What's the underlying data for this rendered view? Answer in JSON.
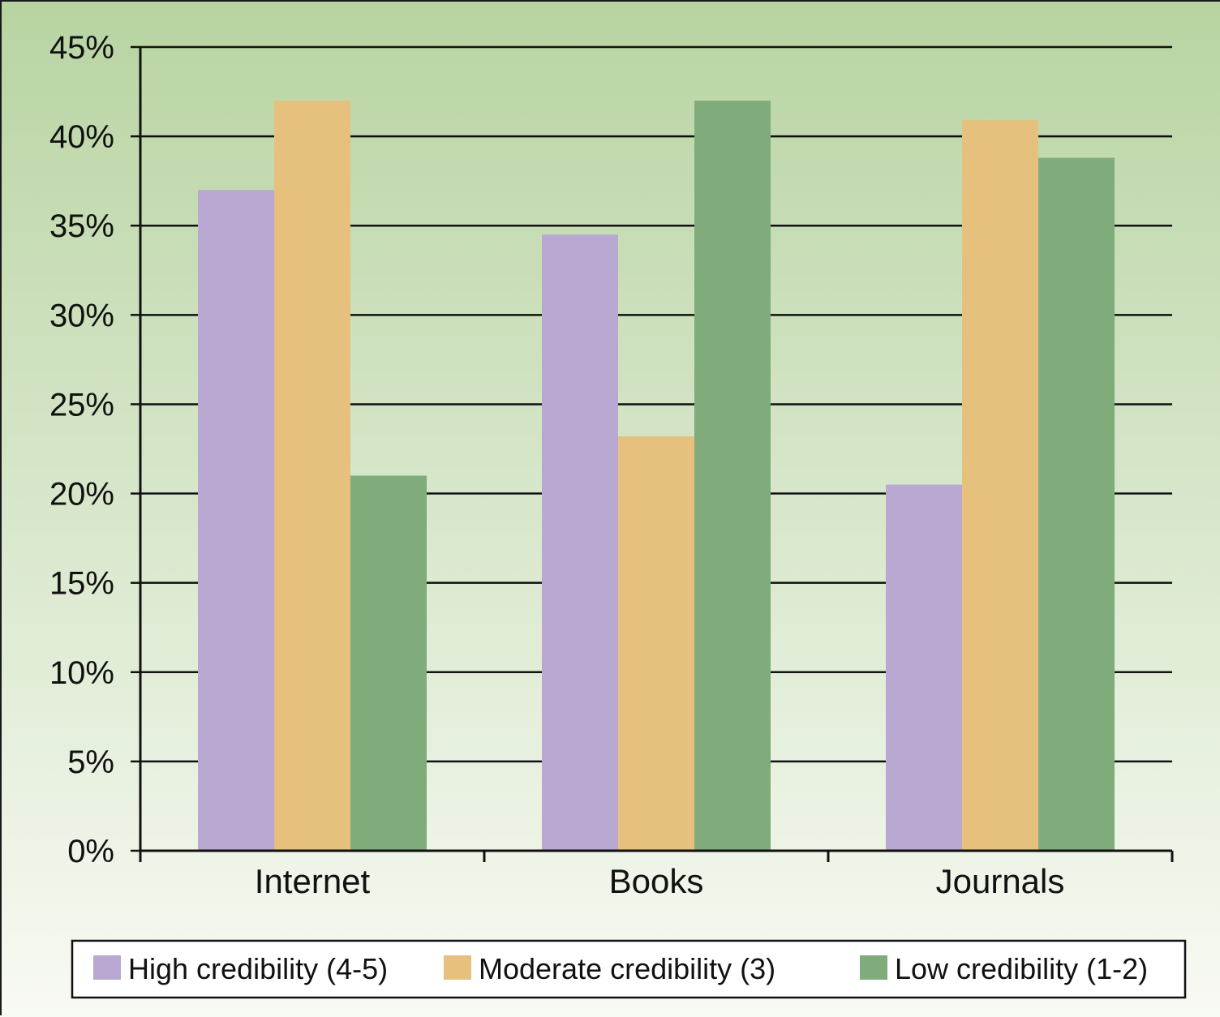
{
  "chart_data": {
    "type": "bar",
    "categories": [
      "Internet",
      "Books",
      "Journals"
    ],
    "series": [
      {
        "name": "High credibility (4-5)",
        "color": "#b9a8d2",
        "values": [
          37,
          34.5,
          20.5
        ]
      },
      {
        "name": "Moderate credibility (3)",
        "color": "#e6c17e",
        "values": [
          42,
          23.2,
          40.9
        ]
      },
      {
        "name": "Low credibility (1-2)",
        "color": "#80ac7c",
        "values": [
          21,
          42,
          38.8
        ]
      }
    ],
    "y_ticks": [
      "0%",
      "5%",
      "10%",
      "15%",
      "20%",
      "25%",
      "30%",
      "35%",
      "40%",
      "45%"
    ],
    "ylim": [
      0,
      45
    ],
    "grid": true,
    "legend_position": "bottom",
    "background": {
      "top": "#b8d4a2",
      "bottom": "#f8faf4"
    }
  }
}
